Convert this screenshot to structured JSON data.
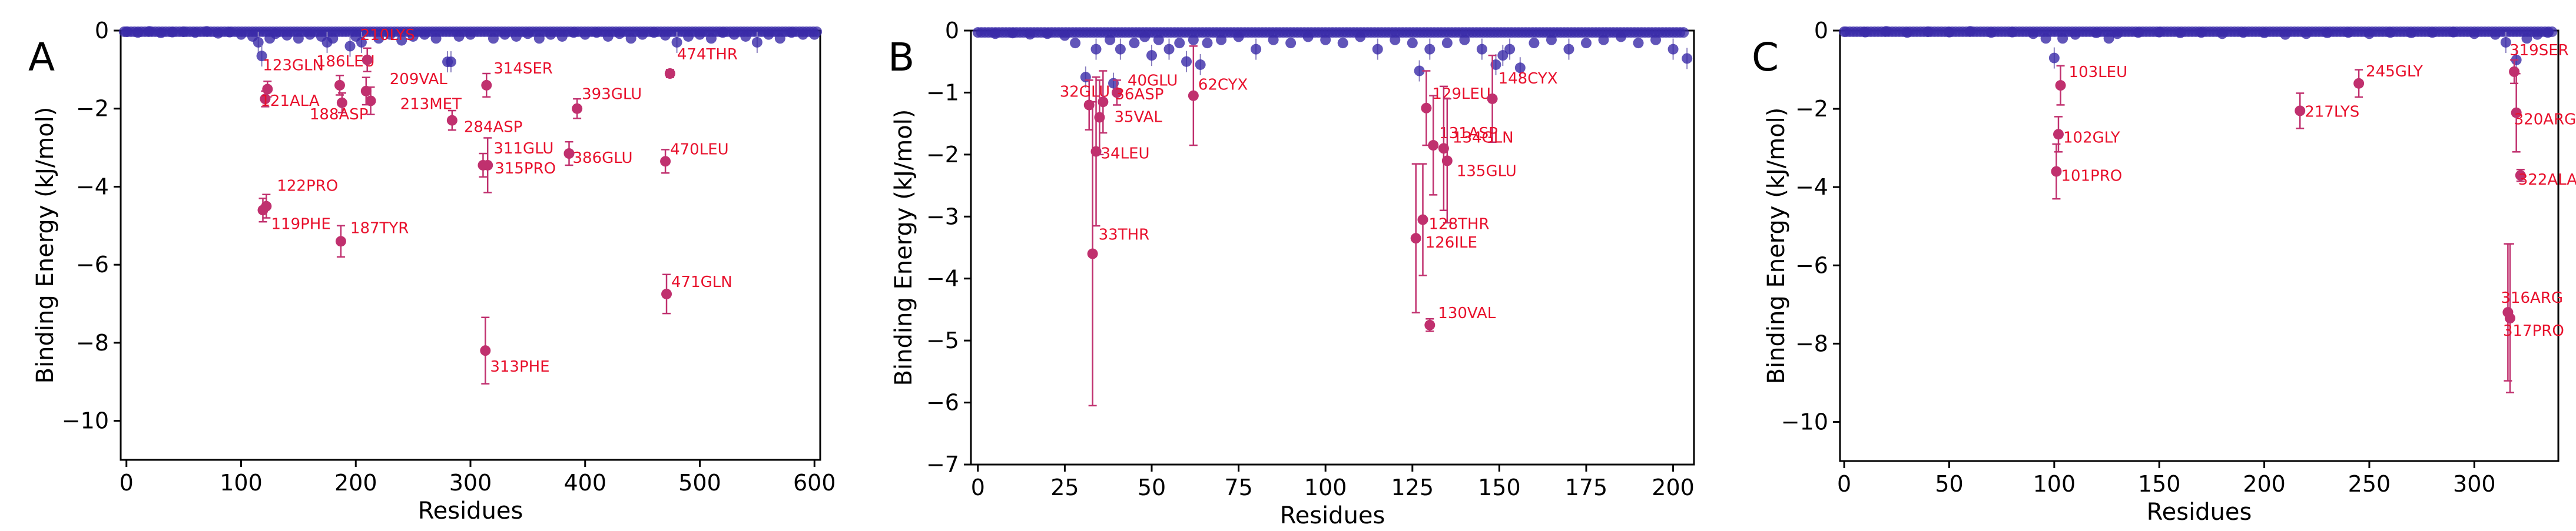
{
  "chart_data": [
    {
      "type": "scatter",
      "panel": "A",
      "xlabel": "Residues",
      "ylabel": "Binding Energy (kJ/mol)",
      "xlim": [
        -5,
        605
      ],
      "ylim": [
        -11,
        0
      ],
      "xticks": [
        0,
        100,
        200,
        300,
        400,
        500,
        600
      ],
      "yticks": [
        0,
        -2,
        -4,
        -6,
        -8,
        -10
      ],
      "colors": {
        "background": "#3a2ba8",
        "highlight": "#c0306e",
        "label": "#e8102c"
      },
      "background_points": [
        [
          0,
          -0.03
        ],
        [
          10,
          -0.05
        ],
        [
          20,
          -0.02
        ],
        [
          30,
          -0.06
        ],
        [
          40,
          -0.04
        ],
        [
          50,
          -0.03
        ],
        [
          60,
          -0.05
        ],
        [
          70,
          -0.02
        ],
        [
          80,
          -0.07
        ],
        [
          90,
          -0.04
        ],
        [
          100,
          -0.1
        ],
        [
          110,
          -0.15
        ],
        [
          115,
          -0.3
        ],
        [
          118,
          -0.65
        ],
        [
          125,
          -0.2
        ],
        [
          130,
          -0.08
        ],
        [
          140,
          -0.12
        ],
        [
          150,
          -0.2
        ],
        [
          160,
          -0.1
        ],
        [
          170,
          -0.15
        ],
        [
          175,
          -0.3
        ],
        [
          180,
          -0.2
        ],
        [
          195,
          -0.4
        ],
        [
          200,
          -0.15
        ],
        [
          205,
          -0.3
        ],
        [
          220,
          -0.2
        ],
        [
          230,
          -0.1
        ],
        [
          240,
          -0.25
        ],
        [
          250,
          -0.15
        ],
        [
          260,
          -0.1
        ],
        [
          270,
          -0.2
        ],
        [
          280,
          -0.8
        ],
        [
          283,
          -0.8
        ],
        [
          290,
          -0.15
        ],
        [
          300,
          -0.1
        ],
        [
          320,
          -0.2
        ],
        [
          330,
          -0.1
        ],
        [
          340,
          -0.15
        ],
        [
          350,
          -0.08
        ],
        [
          360,
          -0.2
        ],
        [
          370,
          -0.1
        ],
        [
          380,
          -0.15
        ],
        [
          390,
          -0.05
        ],
        [
          400,
          -0.1
        ],
        [
          410,
          -0.05
        ],
        [
          420,
          -0.15
        ],
        [
          430,
          -0.08
        ],
        [
          440,
          -0.2
        ],
        [
          450,
          -0.1
        ],
        [
          460,
          -0.05
        ],
        [
          470,
          -0.12
        ],
        [
          480,
          -0.3
        ],
        [
          490,
          -0.15
        ],
        [
          500,
          -0.1
        ],
        [
          510,
          -0.2
        ],
        [
          520,
          -0.05
        ],
        [
          530,
          -0.1
        ],
        [
          540,
          -0.15
        ],
        [
          550,
          -0.3
        ],
        [
          560,
          -0.1
        ],
        [
          570,
          -0.2
        ],
        [
          580,
          -0.05
        ],
        [
          590,
          -0.1
        ],
        [
          600,
          -0.1
        ]
      ],
      "residues": [
        {
          "label": "123GLN",
          "x": 123,
          "y": -1.5,
          "err": 0.2
        },
        {
          "label": "121ALA",
          "x": 121,
          "y": -1.75,
          "err": 0.2
        },
        {
          "label": "186LEU",
          "x": 186,
          "y": -1.4,
          "err": 0.25
        },
        {
          "label": "188ASP",
          "x": 188,
          "y": -1.85,
          "err": 0.25
        },
        {
          "label": "210LYS",
          "x": 210,
          "y": -0.75,
          "err": 0.3
        },
        {
          "label": "209VAL",
          "x": 209,
          "y": -1.55,
          "err": 0.35
        },
        {
          "label": "213MET",
          "x": 213,
          "y": -1.8,
          "err": 0.35
        },
        {
          "label": "284ASP",
          "x": 284,
          "y": -2.3,
          "err": 0.25
        },
        {
          "label": "314SER",
          "x": 314,
          "y": -1.4,
          "err": 0.3
        },
        {
          "label": "311GLU",
          "x": 311,
          "y": -3.45,
          "err": 0.3
        },
        {
          "label": "315PRO",
          "x": 315,
          "y": -3.45,
          "err": 0.7
        },
        {
          "label": "393GLU",
          "x": 393,
          "y": -2.0,
          "err": 0.25
        },
        {
          "label": "386GLU",
          "x": 386,
          "y": -3.15,
          "err": 0.3
        },
        {
          "label": "474THR",
          "x": 474,
          "y": -1.1,
          "err": 0.1
        },
        {
          "label": "470LEU",
          "x": 470,
          "y": -3.35,
          "err": 0.3
        },
        {
          "label": "122PRO",
          "x": 122,
          "y": -4.5,
          "err": 0.3
        },
        {
          "label": "119PHE",
          "x": 119,
          "y": -4.6,
          "err": 0.3
        },
        {
          "label": "187TYR",
          "x": 187,
          "y": -5.4,
          "err": 0.4
        },
        {
          "label": "471GLN",
          "x": 471,
          "y": -6.75,
          "err": 0.5
        },
        {
          "label": "313PHE",
          "x": 313,
          "y": -8.2,
          "err": 0.85
        }
      ]
    },
    {
      "type": "scatter",
      "panel": "B",
      "xlabel": "Residues",
      "ylabel": "Binding Energy (kJ/mol)",
      "xlim": [
        -2,
        206
      ],
      "ylim": [
        -7,
        0
      ],
      "xticks": [
        0,
        25,
        50,
        75,
        100,
        125,
        150,
        175,
        200
      ],
      "yticks": [
        0,
        -1,
        -2,
        -3,
        -4,
        -5,
        -6,
        -7
      ],
      "colors": {
        "background": "#3a2ba8",
        "highlight": "#c0306e",
        "label": "#e8102c"
      },
      "background_points": [
        [
          0,
          -0.03
        ],
        [
          5,
          -0.05
        ],
        [
          10,
          -0.04
        ],
        [
          15,
          -0.06
        ],
        [
          20,
          -0.05
        ],
        [
          25,
          -0.08
        ],
        [
          28,
          -0.2
        ],
        [
          31,
          -0.75
        ],
        [
          34,
          -0.3
        ],
        [
          38,
          -0.15
        ],
        [
          39,
          -0.85
        ],
        [
          41,
          -0.3
        ],
        [
          45,
          -0.2
        ],
        [
          48,
          -0.1
        ],
        [
          50,
          -0.4
        ],
        [
          52,
          -0.15
        ],
        [
          55,
          -0.3
        ],
        [
          58,
          -0.2
        ],
        [
          60,
          -0.5
        ],
        [
          62,
          -0.15
        ],
        [
          64,
          -0.55
        ],
        [
          66,
          -0.2
        ],
        [
          70,
          -0.15
        ],
        [
          75,
          -0.1
        ],
        [
          80,
          -0.3
        ],
        [
          85,
          -0.15
        ],
        [
          90,
          -0.2
        ],
        [
          95,
          -0.1
        ],
        [
          100,
          -0.15
        ],
        [
          105,
          -0.2
        ],
        [
          110,
          -0.1
        ],
        [
          115,
          -0.3
        ],
        [
          120,
          -0.15
        ],
        [
          125,
          -0.2
        ],
        [
          127,
          -0.65
        ],
        [
          130,
          -0.3
        ],
        [
          135,
          -0.2
        ],
        [
          140,
          -0.15
        ],
        [
          145,
          -0.3
        ],
        [
          149,
          -0.55
        ],
        [
          151,
          -0.4
        ],
        [
          153,
          -0.3
        ],
        [
          156,
          -0.6
        ],
        [
          160,
          -0.2
        ],
        [
          165,
          -0.15
        ],
        [
          170,
          -0.3
        ],
        [
          175,
          -0.2
        ],
        [
          180,
          -0.15
        ],
        [
          185,
          -0.1
        ],
        [
          190,
          -0.2
        ],
        [
          195,
          -0.15
        ],
        [
          200,
          -0.3
        ],
        [
          204,
          -0.45
        ]
      ],
      "residues": [
        {
          "label": "40GLU",
          "x": 40,
          "y": -1.0,
          "err": 0.2
        },
        {
          "label": "32GLU",
          "x": 32,
          "y": -1.2,
          "err": 0.4
        },
        {
          "label": "36ASP",
          "x": 36,
          "y": -1.15,
          "err": 0.5
        },
        {
          "label": "35VAL",
          "x": 35,
          "y": -1.4,
          "err": 0.6
        },
        {
          "label": "62CYX",
          "x": 62,
          "y": -1.05,
          "err": 0.8
        },
        {
          "label": "34LEU",
          "x": 34,
          "y": -1.95,
          "err": 1.2
        },
        {
          "label": "33THR",
          "x": 33,
          "y": -3.6,
          "err": 2.45
        },
        {
          "label": "129LEU",
          "x": 129,
          "y": -1.25,
          "err": 0.6
        },
        {
          "label": "148CYX",
          "x": 148,
          "y": -1.1,
          "err": 0.7
        },
        {
          "label": "131ASP",
          "x": 131,
          "y": -1.85,
          "err": 0.8
        },
        {
          "label": "134GLN",
          "x": 134,
          "y": -1.9,
          "err": 1.0
        },
        {
          "label": "135GLU",
          "x": 135,
          "y": -2.1,
          "err": 1.0
        },
        {
          "label": "128THR",
          "x": 128,
          "y": -3.05,
          "err": 0.9
        },
        {
          "label": "126ILE",
          "x": 126,
          "y": -3.35,
          "err": 1.2
        },
        {
          "label": "130VAL",
          "x": 130,
          "y": -4.75,
          "err": 0.1
        }
      ]
    },
    {
      "type": "scatter",
      "panel": "C",
      "xlabel": "Residues",
      "ylabel": "Binding Energy (kJ/mol)",
      "xlim": [
        -2,
        340
      ],
      "ylim": [
        -11,
        0
      ],
      "xticks": [
        0,
        50,
        100,
        150,
        200,
        250,
        300
      ],
      "yticks": [
        0,
        -2,
        -4,
        -6,
        -8,
        -10
      ],
      "colors": {
        "background": "#3a2ba8",
        "highlight": "#c0306e",
        "label": "#e8102c"
      },
      "background_points": [
        [
          0,
          -0.03
        ],
        [
          10,
          -0.04
        ],
        [
          20,
          -0.02
        ],
        [
          30,
          -0.05
        ],
        [
          40,
          -0.03
        ],
        [
          50,
          -0.04
        ],
        [
          60,
          -0.02
        ],
        [
          70,
          -0.05
        ],
        [
          80,
          -0.04
        ],
        [
          90,
          -0.08
        ],
        [
          96,
          -0.2
        ],
        [
          100,
          -0.7
        ],
        [
          104,
          -0.2
        ],
        [
          110,
          -0.1
        ],
        [
          120,
          -0.06
        ],
        [
          126,
          -0.2
        ],
        [
          130,
          -0.08
        ],
        [
          140,
          -0.05
        ],
        [
          150,
          -0.04
        ],
        [
          160,
          -0.06
        ],
        [
          170,
          -0.05
        ],
        [
          180,
          -0.08
        ],
        [
          190,
          -0.05
        ],
        [
          200,
          -0.06
        ],
        [
          210,
          -0.1
        ],
        [
          220,
          -0.08
        ],
        [
          230,
          -0.06
        ],
        [
          240,
          -0.05
        ],
        [
          250,
          -0.08
        ],
        [
          260,
          -0.05
        ],
        [
          270,
          -0.06
        ],
        [
          280,
          -0.05
        ],
        [
          290,
          -0.04
        ],
        [
          300,
          -0.08
        ],
        [
          310,
          -0.1
        ],
        [
          315,
          -0.3
        ],
        [
          320,
          -0.75
        ],
        [
          325,
          -0.2
        ],
        [
          330,
          -0.1
        ],
        [
          335,
          -0.05
        ]
      ],
      "residues": [
        {
          "label": "103LEU",
          "x": 103,
          "y": -1.4,
          "err": 0.5
        },
        {
          "label": "102GLY",
          "x": 102,
          "y": -2.65,
          "err": 0.45
        },
        {
          "label": "101PRO",
          "x": 101,
          "y": -3.6,
          "err": 0.7
        },
        {
          "label": "245GLY",
          "x": 245,
          "y": -1.35,
          "err": 0.35
        },
        {
          "label": "217LYS",
          "x": 217,
          "y": -2.05,
          "err": 0.45
        },
        {
          "label": "319SER",
          "x": 319,
          "y": -1.05,
          "err": 0.3
        },
        {
          "label": "320ARG",
          "x": 320,
          "y": -2.1,
          "err": 1.0
        },
        {
          "label": "322ALA",
          "x": 322,
          "y": -3.7,
          "err": 0.15
        },
        {
          "label": "316ARG",
          "x": 316,
          "y": -7.2,
          "err": 1.75
        },
        {
          "label": "317PRO",
          "x": 317,
          "y": -7.35,
          "err": 1.9
        }
      ]
    }
  ]
}
